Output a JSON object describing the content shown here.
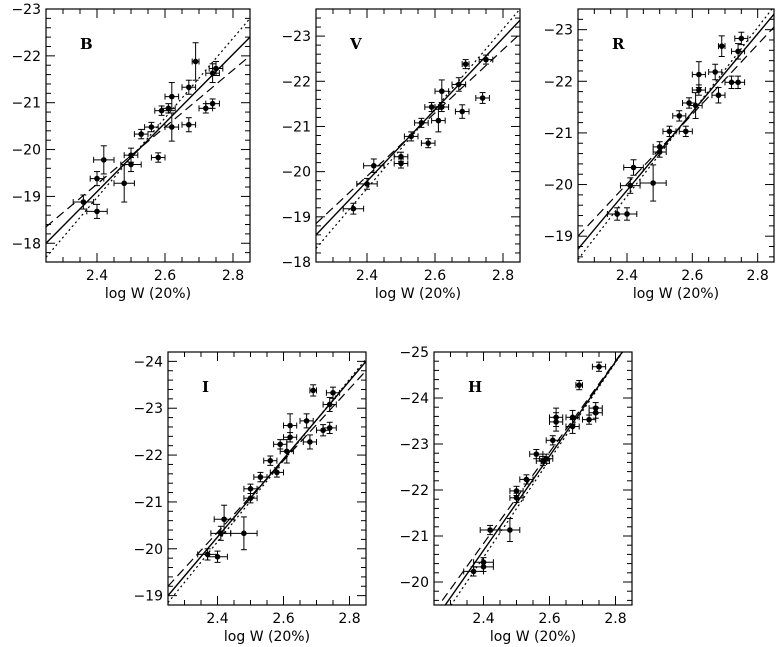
{
  "chart_data": [
    {
      "type": "scatter",
      "band": "B",
      "xlabel": "log W (20%)",
      "ylabel": "",
      "xlim": [
        2.25,
        2.85
      ],
      "ylim": [
        -17.6,
        -23.0
      ],
      "xticks": [
        2.4,
        2.6,
        2.8
      ],
      "yticks": [
        -18,
        -19,
        -20,
        -21,
        -22,
        -23
      ],
      "points": [
        {
          "x": 2.36,
          "y": -18.88,
          "ex": 0.03,
          "ey": 0.15
        },
        {
          "x": 2.4,
          "y": -18.68,
          "ex": 0.03,
          "ey": 0.15
        },
        {
          "x": 2.4,
          "y": -19.38,
          "ex": 0.02,
          "ey": 0.15
        },
        {
          "x": 2.42,
          "y": -19.78,
          "ex": 0.03,
          "ey": 0.3
        },
        {
          "x": 2.48,
          "y": -19.28,
          "ex": 0.03,
          "ey": 0.4
        },
        {
          "x": 2.5,
          "y": -19.68,
          "ex": 0.03,
          "ey": 0.15
        },
        {
          "x": 2.5,
          "y": -19.88,
          "ex": 0.02,
          "ey": 0.15
        },
        {
          "x": 2.53,
          "y": -20.33,
          "ex": 0.02,
          "ey": 0.1
        },
        {
          "x": 2.56,
          "y": -20.48,
          "ex": 0.02,
          "ey": 0.1
        },
        {
          "x": 2.58,
          "y": -19.83,
          "ex": 0.02,
          "ey": 0.1
        },
        {
          "x": 2.59,
          "y": -20.83,
          "ex": 0.02,
          "ey": 0.1
        },
        {
          "x": 2.61,
          "y": -20.88,
          "ex": 0.02,
          "ey": 0.1
        },
        {
          "x": 2.62,
          "y": -21.13,
          "ex": 0.02,
          "ey": 0.3
        },
        {
          "x": 2.62,
          "y": -20.48,
          "ex": 0.02,
          "ey": 0.3
        },
        {
          "x": 2.67,
          "y": -20.53,
          "ex": 0.02,
          "ey": 0.15
        },
        {
          "x": 2.67,
          "y": -21.33,
          "ex": 0.02,
          "ey": 0.15
        },
        {
          "x": 2.69,
          "y": -21.88,
          "ex": 0.01,
          "ey": 0.4
        },
        {
          "x": 2.72,
          "y": -20.88,
          "ex": 0.02,
          "ey": 0.1
        },
        {
          "x": 2.74,
          "y": -20.98,
          "ex": 0.02,
          "ey": 0.1
        },
        {
          "x": 2.74,
          "y": -21.63,
          "ex": 0.02,
          "ey": 0.2
        },
        {
          "x": 2.75,
          "y": -21.73,
          "ex": 0.02,
          "ey": 0.15
        }
      ],
      "fits": [
        {
          "style": "solid",
          "y_at_x_min": -18.0,
          "y_at_x_max": -22.4
        },
        {
          "style": "dashed",
          "y_at_x_min": -18.35,
          "y_at_x_max": -22.0
        },
        {
          "style": "dotted",
          "y_at_x_min": -17.7,
          "y_at_x_max": -22.8
        }
      ]
    },
    {
      "type": "scatter",
      "band": "V",
      "xlabel": "log W (20%)",
      "ylabel": "",
      "xlim": [
        2.25,
        2.85
      ],
      "ylim": [
        -18.0,
        -23.6
      ],
      "xticks": [
        2.4,
        2.6,
        2.8
      ],
      "yticks": [
        -18,
        -19,
        -20,
        -21,
        -22,
        -23
      ],
      "points": [
        {
          "x": 2.36,
          "y": -19.18,
          "ex": 0.03,
          "ey": 0.12
        },
        {
          "x": 2.4,
          "y": -19.73,
          "ex": 0.03,
          "ey": 0.12
        },
        {
          "x": 2.42,
          "y": -20.13,
          "ex": 0.03,
          "ey": 0.15
        },
        {
          "x": 2.5,
          "y": -20.18,
          "ex": 0.02,
          "ey": 0.1
        },
        {
          "x": 2.5,
          "y": -20.33,
          "ex": 0.02,
          "ey": 0.1
        },
        {
          "x": 2.53,
          "y": -20.78,
          "ex": 0.02,
          "ey": 0.1
        },
        {
          "x": 2.56,
          "y": -21.08,
          "ex": 0.02,
          "ey": 0.1
        },
        {
          "x": 2.58,
          "y": -20.63,
          "ex": 0.02,
          "ey": 0.1
        },
        {
          "x": 2.59,
          "y": -21.43,
          "ex": 0.02,
          "ey": 0.1
        },
        {
          "x": 2.61,
          "y": -21.13,
          "ex": 0.02,
          "ey": 0.25
        },
        {
          "x": 2.62,
          "y": -21.43,
          "ex": 0.02,
          "ey": 0.1
        },
        {
          "x": 2.62,
          "y": -21.78,
          "ex": 0.02,
          "ey": 0.25
        },
        {
          "x": 2.67,
          "y": -21.93,
          "ex": 0.02,
          "ey": 0.15
        },
        {
          "x": 2.68,
          "y": -21.33,
          "ex": 0.02,
          "ey": 0.15
        },
        {
          "x": 2.69,
          "y": -22.38,
          "ex": 0.01,
          "ey": 0.1
        },
        {
          "x": 2.74,
          "y": -21.63,
          "ex": 0.02,
          "ey": 0.12
        },
        {
          "x": 2.75,
          "y": -22.48,
          "ex": 0.02,
          "ey": 0.1
        }
      ],
      "fits": [
        {
          "style": "solid",
          "y_at_x_min": -18.6,
          "y_at_x_max": -23.35
        },
        {
          "style": "dashed",
          "y_at_x_min": -18.85,
          "y_at_x_max": -23.05
        },
        {
          "style": "dotted",
          "y_at_x_min": -18.3,
          "y_at_x_max": -23.6
        }
      ]
    },
    {
      "type": "scatter",
      "band": "R",
      "xlabel": "log W (20%)",
      "ylabel": "",
      "xlim": [
        2.25,
        2.85
      ],
      "ylim": [
        -18.5,
        -23.4
      ],
      "xticks": [
        2.4,
        2.6,
        2.8
      ],
      "yticks": [
        -19,
        -20,
        -21,
        -22,
        -23
      ],
      "points": [
        {
          "x": 2.37,
          "y": -19.43,
          "ex": 0.03,
          "ey": 0.12
        },
        {
          "x": 2.4,
          "y": -19.43,
          "ex": 0.03,
          "ey": 0.12
        },
        {
          "x": 2.41,
          "y": -19.98,
          "ex": 0.03,
          "ey": 0.15
        },
        {
          "x": 2.42,
          "y": -20.33,
          "ex": 0.03,
          "ey": 0.15
        },
        {
          "x": 2.48,
          "y": -20.03,
          "ex": 0.04,
          "ey": 0.35
        },
        {
          "x": 2.5,
          "y": -20.63,
          "ex": 0.02,
          "ey": 0.1
        },
        {
          "x": 2.5,
          "y": -20.73,
          "ex": 0.02,
          "ey": 0.1
        },
        {
          "x": 2.53,
          "y": -21.03,
          "ex": 0.02,
          "ey": 0.1
        },
        {
          "x": 2.56,
          "y": -21.33,
          "ex": 0.02,
          "ey": 0.1
        },
        {
          "x": 2.58,
          "y": -21.03,
          "ex": 0.02,
          "ey": 0.1
        },
        {
          "x": 2.59,
          "y": -21.58,
          "ex": 0.02,
          "ey": 0.1
        },
        {
          "x": 2.61,
          "y": -21.53,
          "ex": 0.02,
          "ey": 0.25
        },
        {
          "x": 2.62,
          "y": -21.83,
          "ex": 0.02,
          "ey": 0.1
        },
        {
          "x": 2.62,
          "y": -22.13,
          "ex": 0.02,
          "ey": 0.25
        },
        {
          "x": 2.67,
          "y": -22.18,
          "ex": 0.02,
          "ey": 0.15
        },
        {
          "x": 2.68,
          "y": -21.73,
          "ex": 0.02,
          "ey": 0.15
        },
        {
          "x": 2.69,
          "y": -22.68,
          "ex": 0.01,
          "ey": 0.2
        },
        {
          "x": 2.72,
          "y": -21.98,
          "ex": 0.02,
          "ey": 0.12
        },
        {
          "x": 2.74,
          "y": -21.98,
          "ex": 0.02,
          "ey": 0.12
        },
        {
          "x": 2.74,
          "y": -22.58,
          "ex": 0.02,
          "ey": 0.15
        },
        {
          "x": 2.75,
          "y": -22.83,
          "ex": 0.02,
          "ey": 0.12
        }
      ],
      "fits": [
        {
          "style": "solid",
          "y_at_x_min": -18.75,
          "y_at_x_max": -23.3
        },
        {
          "style": "dashed",
          "y_at_x_min": -19.0,
          "y_at_x_max": -23.05
        },
        {
          "style": "dotted",
          "y_at_x_min": -18.55,
          "y_at_x_max": -23.45
        }
      ]
    },
    {
      "type": "scatter",
      "band": "I",
      "xlabel": "log W (20%)",
      "ylabel": "",
      "xlim": [
        2.25,
        2.85
      ],
      "ylim": [
        -18.8,
        -24.2
      ],
      "xticks": [
        2.4,
        2.6,
        2.8
      ],
      "yticks": [
        -19,
        -20,
        -21,
        -22,
        -23,
        -24
      ],
      "points": [
        {
          "x": 2.37,
          "y": -19.88,
          "ex": 0.03,
          "ey": 0.12
        },
        {
          "x": 2.4,
          "y": -19.83,
          "ex": 0.03,
          "ey": 0.12
        },
        {
          "x": 2.41,
          "y": -20.33,
          "ex": 0.03,
          "ey": 0.15
        },
        {
          "x": 2.42,
          "y": -20.63,
          "ex": 0.03,
          "ey": 0.3
        },
        {
          "x": 2.48,
          "y": -20.33,
          "ex": 0.04,
          "ey": 0.35
        },
        {
          "x": 2.5,
          "y": -21.08,
          "ex": 0.02,
          "ey": 0.1
        },
        {
          "x": 2.5,
          "y": -21.28,
          "ex": 0.02,
          "ey": 0.1
        },
        {
          "x": 2.53,
          "y": -21.53,
          "ex": 0.02,
          "ey": 0.1
        },
        {
          "x": 2.56,
          "y": -21.88,
          "ex": 0.02,
          "ey": 0.1
        },
        {
          "x": 2.58,
          "y": -21.63,
          "ex": 0.02,
          "ey": 0.1
        },
        {
          "x": 2.59,
          "y": -22.23,
          "ex": 0.02,
          "ey": 0.1
        },
        {
          "x": 2.61,
          "y": -22.08,
          "ex": 0.02,
          "ey": 0.25
        },
        {
          "x": 2.62,
          "y": -22.38,
          "ex": 0.02,
          "ey": 0.1
        },
        {
          "x": 2.62,
          "y": -22.63,
          "ex": 0.02,
          "ey": 0.25
        },
        {
          "x": 2.67,
          "y": -22.73,
          "ex": 0.02,
          "ey": 0.15
        },
        {
          "x": 2.68,
          "y": -22.28,
          "ex": 0.02,
          "ey": 0.15
        },
        {
          "x": 2.69,
          "y": -23.38,
          "ex": 0.01,
          "ey": 0.12
        },
        {
          "x": 2.72,
          "y": -22.53,
          "ex": 0.02,
          "ey": 0.12
        },
        {
          "x": 2.74,
          "y": -22.58,
          "ex": 0.02,
          "ey": 0.12
        },
        {
          "x": 2.74,
          "y": -23.08,
          "ex": 0.02,
          "ey": 0.15
        },
        {
          "x": 2.75,
          "y": -23.33,
          "ex": 0.02,
          "ey": 0.12
        }
      ],
      "fits": [
        {
          "style": "solid",
          "y_at_x_min": -19.0,
          "y_at_x_max": -24.0
        },
        {
          "style": "dashed",
          "y_at_x_min": -19.2,
          "y_at_x_max": -23.8
        },
        {
          "style": "dotted",
          "y_at_x_min": -18.85,
          "y_at_x_max": -24.05
        }
      ]
    },
    {
      "type": "scatter",
      "band": "H",
      "xlabel": "log W (20%)",
      "ylabel": "",
      "xlim": [
        2.25,
        2.85
      ],
      "ylim": [
        -19.5,
        -25.0
      ],
      "xticks": [
        2.4,
        2.6,
        2.8
      ],
      "yticks": [
        -20,
        -21,
        -22,
        -23,
        -24,
        -25
      ],
      "points": [
        {
          "x": 2.37,
          "y": -20.23,
          "ex": 0.03,
          "ey": 0.1
        },
        {
          "x": 2.4,
          "y": -20.33,
          "ex": 0.03,
          "ey": 0.1
        },
        {
          "x": 2.4,
          "y": -20.43,
          "ex": 0.03,
          "ey": 0.1
        },
        {
          "x": 2.42,
          "y": -21.13,
          "ex": 0.03,
          "ey": 0.1
        },
        {
          "x": 2.48,
          "y": -21.13,
          "ex": 0.03,
          "ey": 0.25
        },
        {
          "x": 2.5,
          "y": -21.83,
          "ex": 0.02,
          "ey": 0.1
        },
        {
          "x": 2.5,
          "y": -21.98,
          "ex": 0.02,
          "ey": 0.1
        },
        {
          "x": 2.53,
          "y": -22.23,
          "ex": 0.02,
          "ey": 0.1
        },
        {
          "x": 2.56,
          "y": -22.78,
          "ex": 0.02,
          "ey": 0.1
        },
        {
          "x": 2.58,
          "y": -22.63,
          "ex": 0.02,
          "ey": 0.1
        },
        {
          "x": 2.59,
          "y": -22.68,
          "ex": 0.02,
          "ey": 0.1
        },
        {
          "x": 2.61,
          "y": -23.08,
          "ex": 0.02,
          "ey": 0.1
        },
        {
          "x": 2.62,
          "y": -23.48,
          "ex": 0.02,
          "ey": 0.2
        },
        {
          "x": 2.62,
          "y": -23.58,
          "ex": 0.02,
          "ey": 0.2
        },
        {
          "x": 2.67,
          "y": -23.38,
          "ex": 0.02,
          "ey": 0.15
        },
        {
          "x": 2.67,
          "y": -23.58,
          "ex": 0.02,
          "ey": 0.15
        },
        {
          "x": 2.69,
          "y": -24.28,
          "ex": 0.01,
          "ey": 0.1
        },
        {
          "x": 2.72,
          "y": -23.53,
          "ex": 0.02,
          "ey": 0.1
        },
        {
          "x": 2.74,
          "y": -23.68,
          "ex": 0.02,
          "ey": 0.12
        },
        {
          "x": 2.74,
          "y": -23.78,
          "ex": 0.02,
          "ey": 0.12
        },
        {
          "x": 2.75,
          "y": -24.68,
          "ex": 0.02,
          "ey": 0.1
        }
      ],
      "fits": [
        {
          "style": "solid",
          "y_at_x_min": -19.15,
          "y_at_x_max": -25.3
        },
        {
          "style": "dashed",
          "y_at_x_min": -19.35,
          "y_at_x_max": -25.3
        },
        {
          "style": "dotted",
          "y_at_x_min": -18.95,
          "y_at_x_max": -25.3
        }
      ]
    }
  ]
}
